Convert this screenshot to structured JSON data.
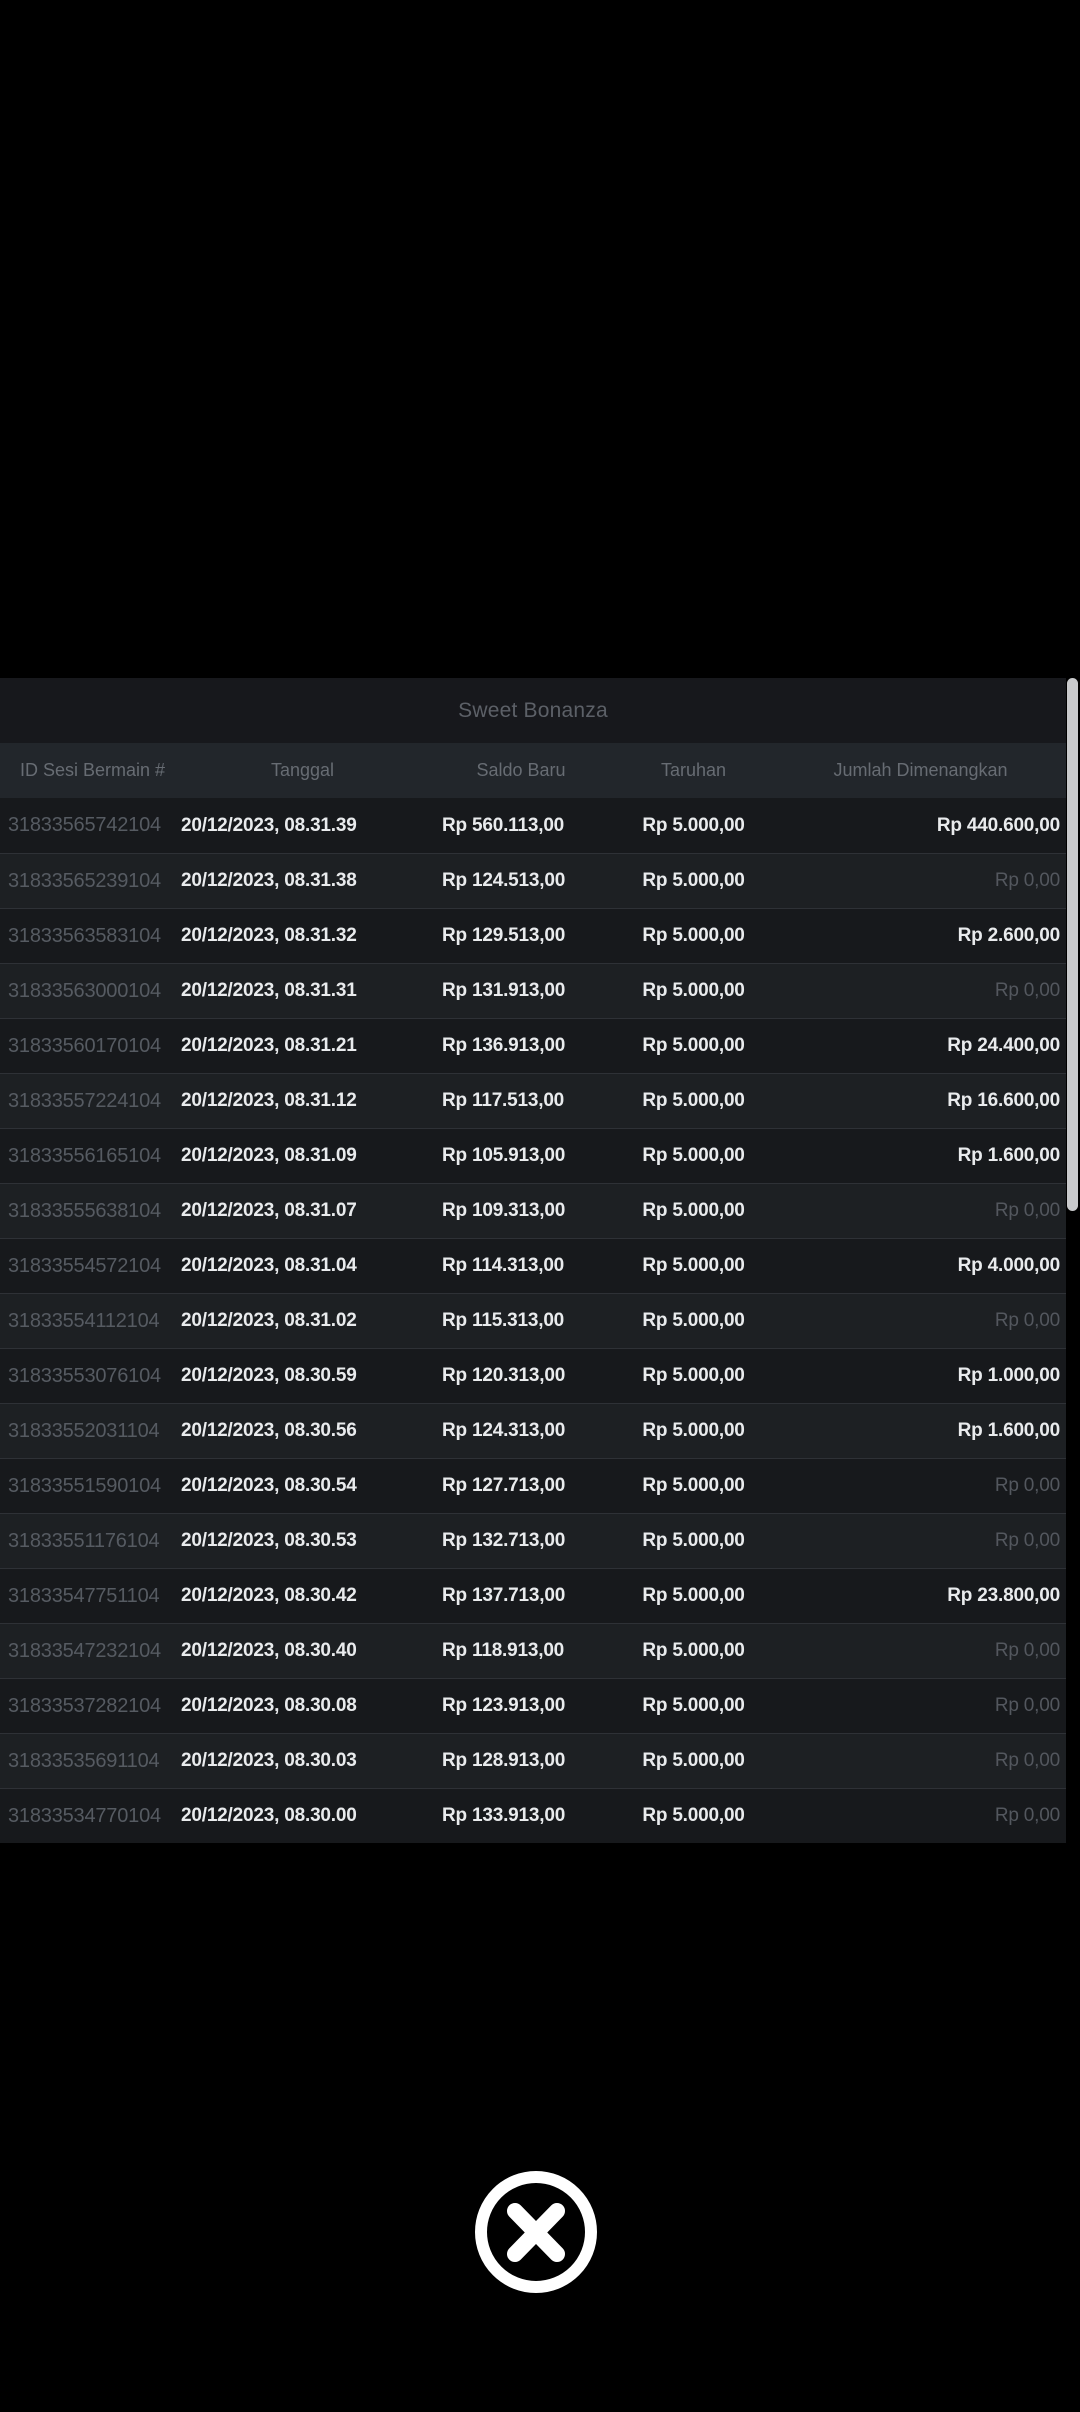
{
  "screen": {
    "background_color": "#000000"
  },
  "modal": {
    "title": "Sweet Bonanza",
    "columns": {
      "id": "ID Sesi Bermain #",
      "tanggal": "Tanggal",
      "saldo_baru": "Saldo Baru",
      "taruhan": "Taruhan",
      "jumlah_dimenangkan": "Jumlah Dimenangkan"
    },
    "zero_amount_text": "Rp 0,00",
    "rows": [
      {
        "id": "31833565742104",
        "tanggal": "20/12/2023, 08.31.39",
        "saldo_baru": "Rp 560.113,00",
        "taruhan": "Rp 5.000,00",
        "jumlah_dimenangkan": "Rp 440.600,00"
      },
      {
        "id": "31833565239104",
        "tanggal": "20/12/2023, 08.31.38",
        "saldo_baru": "Rp 124.513,00",
        "taruhan": "Rp 5.000,00",
        "jumlah_dimenangkan": "Rp 0,00"
      },
      {
        "id": "31833563583104",
        "tanggal": "20/12/2023, 08.31.32",
        "saldo_baru": "Rp 129.513,00",
        "taruhan": "Rp 5.000,00",
        "jumlah_dimenangkan": "Rp 2.600,00"
      },
      {
        "id": "31833563000104",
        "tanggal": "20/12/2023, 08.31.31",
        "saldo_baru": "Rp 131.913,00",
        "taruhan": "Rp 5.000,00",
        "jumlah_dimenangkan": "Rp 0,00"
      },
      {
        "id": "31833560170104",
        "tanggal": "20/12/2023, 08.31.21",
        "saldo_baru": "Rp 136.913,00",
        "taruhan": "Rp 5.000,00",
        "jumlah_dimenangkan": "Rp 24.400,00"
      },
      {
        "id": "31833557224104",
        "tanggal": "20/12/2023, 08.31.12",
        "saldo_baru": "Rp 117.513,00",
        "taruhan": "Rp 5.000,00",
        "jumlah_dimenangkan": "Rp 16.600,00"
      },
      {
        "id": "31833556165104",
        "tanggal": "20/12/2023, 08.31.09",
        "saldo_baru": "Rp 105.913,00",
        "taruhan": "Rp 5.000,00",
        "jumlah_dimenangkan": "Rp 1.600,00"
      },
      {
        "id": "31833555638104",
        "tanggal": "20/12/2023, 08.31.07",
        "saldo_baru": "Rp 109.313,00",
        "taruhan": "Rp 5.000,00",
        "jumlah_dimenangkan": "Rp 0,00"
      },
      {
        "id": "31833554572104",
        "tanggal": "20/12/2023, 08.31.04",
        "saldo_baru": "Rp 114.313,00",
        "taruhan": "Rp 5.000,00",
        "jumlah_dimenangkan": "Rp 4.000,00"
      },
      {
        "id": "31833554112104",
        "tanggal": "20/12/2023, 08.31.02",
        "saldo_baru": "Rp 115.313,00",
        "taruhan": "Rp 5.000,00",
        "jumlah_dimenangkan": "Rp 0,00"
      },
      {
        "id": "31833553076104",
        "tanggal": "20/12/2023, 08.30.59",
        "saldo_baru": "Rp 120.313,00",
        "taruhan": "Rp 5.000,00",
        "jumlah_dimenangkan": "Rp 1.000,00"
      },
      {
        "id": "31833552031104",
        "tanggal": "20/12/2023, 08.30.56",
        "saldo_baru": "Rp 124.313,00",
        "taruhan": "Rp 5.000,00",
        "jumlah_dimenangkan": "Rp 1.600,00"
      },
      {
        "id": "31833551590104",
        "tanggal": "20/12/2023, 08.30.54",
        "saldo_baru": "Rp 127.713,00",
        "taruhan": "Rp 5.000,00",
        "jumlah_dimenangkan": "Rp 0,00"
      },
      {
        "id": "31833551176104",
        "tanggal": "20/12/2023, 08.30.53",
        "saldo_baru": "Rp 132.713,00",
        "taruhan": "Rp 5.000,00",
        "jumlah_dimenangkan": "Rp 0,00"
      },
      {
        "id": "31833547751104",
        "tanggal": "20/12/2023, 08.30.42",
        "saldo_baru": "Rp 137.713,00",
        "taruhan": "Rp 5.000,00",
        "jumlah_dimenangkan": "Rp 23.800,00"
      },
      {
        "id": "31833547232104",
        "tanggal": "20/12/2023, 08.30.40",
        "saldo_baru": "Rp 118.913,00",
        "taruhan": "Rp 5.000,00",
        "jumlah_dimenangkan": "Rp 0,00"
      },
      {
        "id": "31833537282104",
        "tanggal": "20/12/2023, 08.30.08",
        "saldo_baru": "Rp 123.913,00",
        "taruhan": "Rp 5.000,00",
        "jumlah_dimenangkan": "Rp 0,00"
      },
      {
        "id": "31833535691104",
        "tanggal": "20/12/2023, 08.30.03",
        "saldo_baru": "Rp 128.913,00",
        "taruhan": "Rp 5.000,00",
        "jumlah_dimenangkan": "Rp 0,00"
      },
      {
        "id": "31833534770104",
        "tanggal": "20/12/2023, 08.30.00",
        "saldo_baru": "Rp 133.913,00",
        "taruhan": "Rp 5.000,00",
        "jumlah_dimenangkan": "Rp 0,00"
      }
    ]
  },
  "close_button": {
    "icon": "x-circle-icon"
  },
  "colors": {
    "page_background": "#000000",
    "title_bar_background": "#17181c",
    "header_background": "#22262b",
    "row_odd_background": "#17191c",
    "row_even_background": "#1d2023",
    "row_separator": "#2e3136",
    "value_text": "#e9ebed",
    "muted_text": "#565b62",
    "title_text": "#5c6067",
    "header_text": "#676c73",
    "scrollbar_thumb": "#c9cacc",
    "close_icon": "#ffffff"
  }
}
